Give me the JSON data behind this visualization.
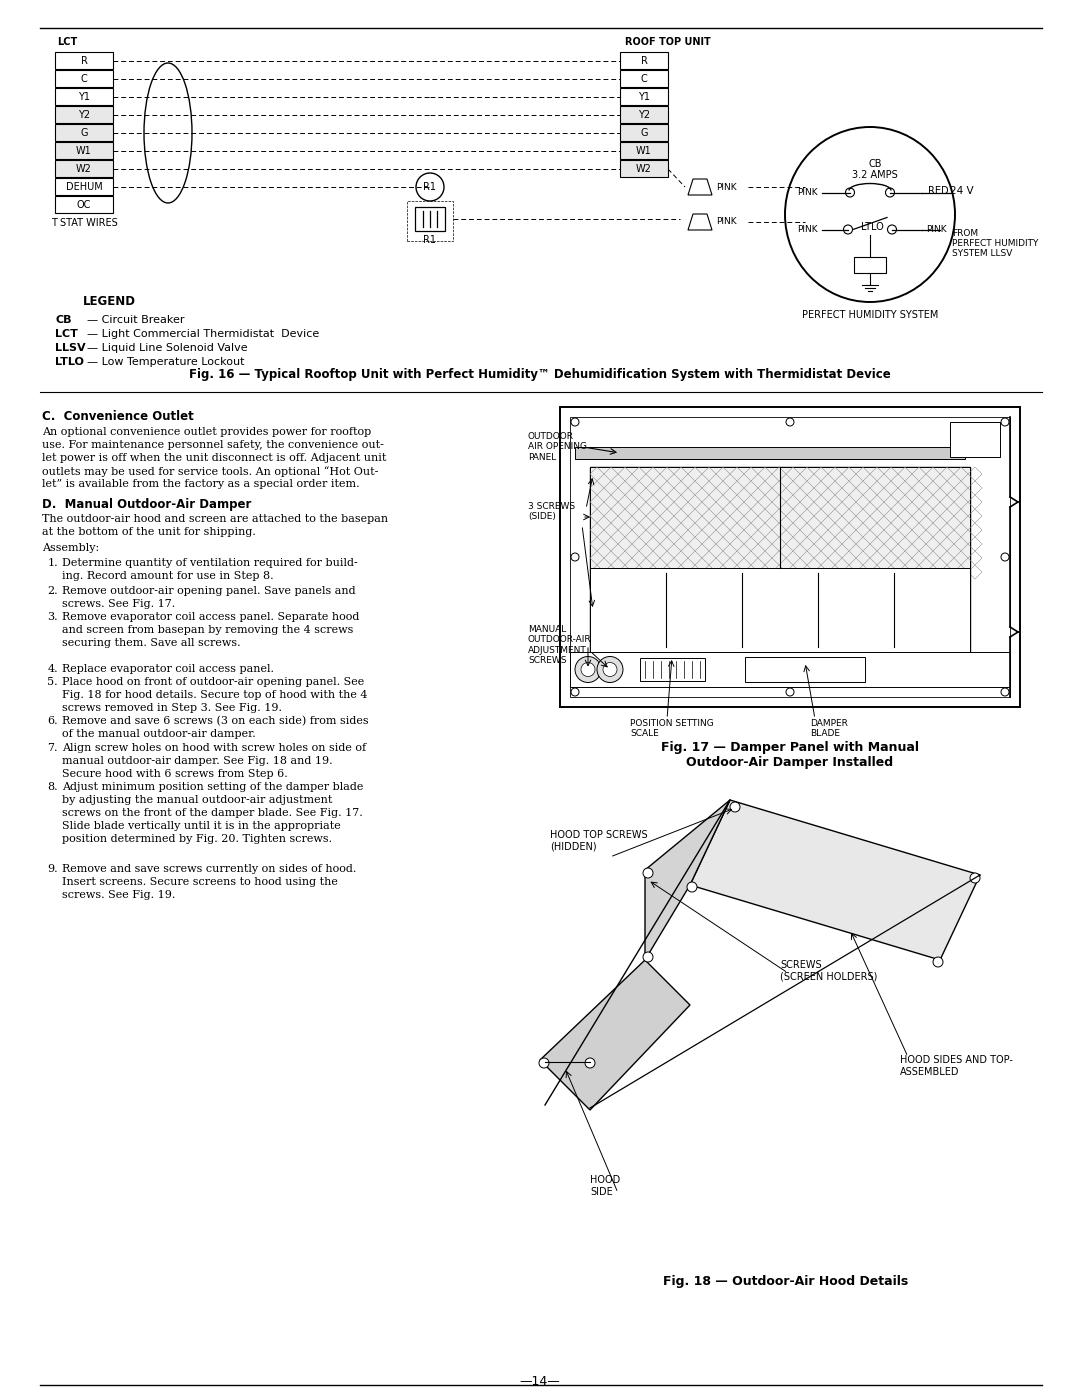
{
  "page_number": "14",
  "background_color": "#ffffff",
  "text_color": "#000000",
  "fig16_caption": "Fig. 16 — Typical Rooftop Unit with Perfect Humidity™ Dehumidification System with Thermidistat Device",
  "fig17_caption": "Fig. 17 — Damper Panel with Manual\nOutdoor-Air Damper Installed",
  "fig18_caption": "Fig. 18 — Outdoor-Air Hood Details",
  "section_c_title": "C.  Convenience Outlet",
  "section_d_title": "D.  Manual Outdoor-Air Damper",
  "assembly_label": "Assembly:",
  "legend_title": "LEGEND",
  "legend_items": [
    [
      "CB",
      "Circuit Breaker"
    ],
    [
      "LCT",
      "Light Commercial Thermidistat  Device"
    ],
    [
      "LLSV",
      "Liquid Line Solenoid Valve"
    ],
    [
      "LTLO",
      "Low Temperature Lockout"
    ]
  ],
  "lct_labels": [
    "R",
    "C",
    "Y1",
    "Y2",
    "G",
    "W1",
    "W2",
    "DEHUM",
    "OC"
  ],
  "rtu_labels": [
    "R",
    "C",
    "Y1",
    "Y2",
    "G",
    "W1",
    "W2"
  ],
  "lct_header": "LCT",
  "rtu_header": "ROOF TOP UNIT",
  "t_stat_label": "T STAT WIRES",
  "r1_label": "R1",
  "red_label": "RED",
  "24v_label": "24 V",
  "ltlo_label": "LTLO",
  "cb_label": "CB\n3.2 AMPS",
  "from_label": "FROM\nPERFECT HUMIDITY\nSYSTEM LLSV",
  "perfect_humidity_label": "PERFECT HUMIDITY SYSTEM",
  "fig17_labels": {
    "outdoor_air": "OUTDOOR\nAIR OPENING\nPANEL",
    "screws_side": "3 SCREWS\n(SIDE)",
    "manual_adj": "MANUAL\nOUTDOOR-AIR\nADJUSTMENT\nSCREWS",
    "position_setting": "POSITION SETTING\nSCALE",
    "damper_blade": "DAMPER\nBLADE"
  },
  "fig18_labels": {
    "hood_top_screws": "HOOD TOP SCREWS\n(HIDDEN)",
    "screws_screen": "SCREWS\n(SCREEN HOLDERS)",
    "hood_sides": "HOOD SIDES AND TOP-\nASSEMBLED",
    "hood_side": "HOOD\nSIDE"
  },
  "c_text": [
    "An optional convenience outlet provides power for rooftop",
    "use. For maintenance personnel safety, the convenience out-",
    "let power is off when the unit disconnect is off. Adjacent unit",
    "outlets may be used for service tools. An optional “Hot Out-",
    "let” is available from the factory as a special order item."
  ],
  "d_intro": [
    "The outdoor-air hood and screen are attached to the basepan",
    "at the bottom of the unit for shipping."
  ],
  "step_texts": [
    [
      "Determine quantity of ventilation required for build-",
      "ing. Record amount for use in Step 8."
    ],
    [
      "Remove outdoor-air opening panel. Save panels and",
      "screws. See Fig. 17."
    ],
    [
      "Remove evaporator coil access panel. Separate hood",
      "and screen from basepan by removing the 4 screws",
      "securing them. Save all screws."
    ],
    [
      "Replace evaporator coil access panel."
    ],
    [
      "Place hood on front of outdoor-air opening panel. See",
      "Fig. 18 for hood details. Secure top of hood with the 4",
      "screws removed in Step 3. See Fig. 19."
    ],
    [
      "Remove and save 6 screws (3 on each side) from sides",
      "of the manual outdoor-air damper."
    ],
    [
      "Align screw holes on hood with screw holes on side of",
      "manual outdoor-air damper. See Fig. 18 and 19.",
      "Secure hood with 6 screws from Step 6."
    ],
    [
      "Adjust minimum position setting of the damper blade",
      "by adjusting the manual outdoor-air adjustment",
      "screws on the front of the damper blade. See Fig. 17.",
      "Slide blade vertically until it is in the appropriate",
      "position determined by Fig. 20. Tighten screws."
    ],
    [
      "Remove and save screws currently on sides of hood.",
      "Insert screens. Secure screens to hood using the",
      "screws. See Fig. 19."
    ]
  ]
}
